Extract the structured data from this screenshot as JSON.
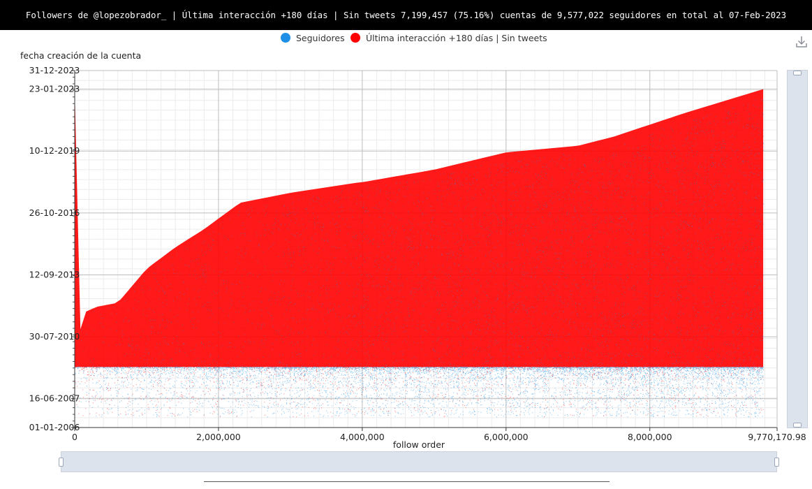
{
  "title": "Followers de @lopezobrador_ | Última interacción +180 días | Sin tweets 7,199,457 (75.16%) cuentas de 9,577,022 seguidores en total al 07-Feb-2023",
  "legend": [
    {
      "label": "Seguidores",
      "color": "#1e8fe6"
    },
    {
      "label": "Última interacción +180 días | Sin tweets",
      "color": "#ff0000"
    }
  ],
  "chart_data": {
    "type": "scatter",
    "title": "Followers de @lopezobrador_ | Última interacción +180 días | Sin tweets 7,199,457 (75.16%) cuentas de 9,577,022 seguidores en total al 07-Feb-2023",
    "xlabel": "follow order",
    "ylabel": "fecha creación de la cuenta",
    "xlim": [
      0,
      9770170.98
    ],
    "ylim": [
      "2006-01-01",
      "2023-12-31"
    ],
    "x_ticks": [
      "0",
      "2,000,000",
      "4,000,000",
      "6,000,000",
      "8,000,000",
      "9,770,170.98"
    ],
    "y_ticks": [
      "01-01-2006",
      "16-06-2007",
      "30-07-2010",
      "12-09-2013",
      "26-10-2016",
      "10-12-2019",
      "23-01-2023",
      "31-12-2023"
    ],
    "grid": true,
    "legend_position": "top-center",
    "series": [
      {
        "name": "Seguidores",
        "color": "#1e8fe6",
        "total_points": 9577022,
        "x_range": [
          0,
          9577022
        ],
        "y_min_date": "2006-07-15"
      },
      {
        "name": "Última interacción +180 días | Sin tweets",
        "color": "#ff0000",
        "total_points": 7199457,
        "percent": 75.16,
        "x_range": [
          0,
          9577022
        ],
        "upper_envelope": [
          {
            "x": 0,
            "date": "2023-01-23"
          },
          {
            "x": 30000,
            "date": "2009-01-01"
          },
          {
            "x": 100000,
            "date": "2011-10-01"
          },
          {
            "x": 300000,
            "date": "2012-02-01"
          },
          {
            "x": 600000,
            "date": "2012-04-15"
          },
          {
            "x": 1000000,
            "date": "2014-01-01"
          },
          {
            "x": 1400000,
            "date": "2015-02-01"
          },
          {
            "x": 1800000,
            "date": "2016-01-01"
          },
          {
            "x": 2300000,
            "date": "2017-05-01"
          },
          {
            "x": 3000000,
            "date": "2017-11-01"
          },
          {
            "x": 3900000,
            "date": "2018-05-01"
          },
          {
            "x": 4000000,
            "date": "2018-05-15"
          },
          {
            "x": 5000000,
            "date": "2019-01-01"
          },
          {
            "x": 6000000,
            "date": "2019-11-15"
          },
          {
            "x": 7000000,
            "date": "2020-03-15"
          },
          {
            "x": 7500000,
            "date": "2020-09-01"
          },
          {
            "x": 8500000,
            "date": "2021-11-15"
          },
          {
            "x": 9577022,
            "date": "2023-01-23"
          }
        ],
        "lower_boundary_date": "2009-01-20"
      }
    ]
  }
}
